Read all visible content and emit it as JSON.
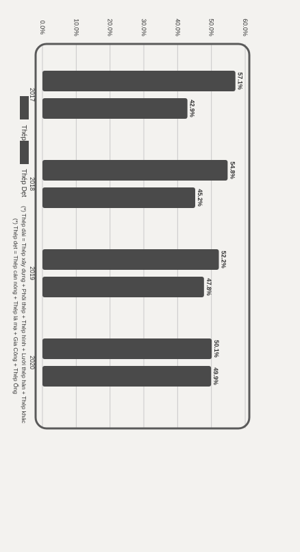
{
  "chart_data": {
    "type": "bar",
    "orientation": "vertical-rotated",
    "categories": [
      "2017",
      "2018",
      "2019",
      "2020"
    ],
    "series": [
      {
        "name": "Thép Dài",
        "values": [
          57.1,
          54.8,
          52.2,
          50.1
        ],
        "labels": [
          "57.1%",
          "54.8%",
          "52.2%",
          "50.1%"
        ]
      },
      {
        "name": "Thép Dẹt",
        "values": [
          42.9,
          45.2,
          47.8,
          49.9
        ],
        "labels": [
          "42.9%",
          "45.2%",
          "47.8%",
          "49.9%"
        ]
      }
    ],
    "y_ticks": [
      "0.0%",
      "10.0%",
      "20.0%",
      "30.0%",
      "40.0%",
      "50.0%",
      "60.0%"
    ],
    "ylim": [
      0,
      60
    ],
    "grid": true,
    "legend_position": "bottom",
    "colors": {
      "bar": "#4a4a4a",
      "text": "#333333",
      "grid": "#c8c8c8",
      "frame": "#5a5a5a"
    }
  },
  "notes": [
    "(*) Thép dài = Thép xây dựng + Phôi thép + Thép hình + Lưới thép hàn + Thép khác",
    "(*) Thép dẹt = Thép cán nóng + Thép lá mạ + Gia Công + Thép Ống"
  ]
}
